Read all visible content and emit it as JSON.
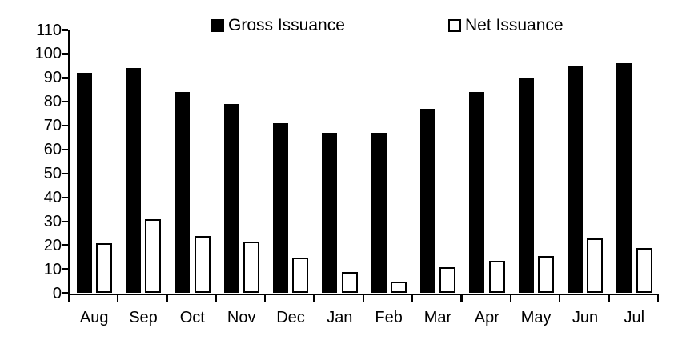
{
  "chart_data": {
    "type": "bar",
    "title": "",
    "xlabel": "",
    "ylabel": "",
    "categories": [
      "Aug",
      "Sep",
      "Oct",
      "Nov",
      "Dec",
      "Jan",
      "Feb",
      "Mar",
      "Apr",
      "May",
      "Jun",
      "Jul"
    ],
    "series": [
      {
        "name": "Gross Issuance",
        "style": "filled",
        "fill": "#000000",
        "values": [
          92,
          94,
          84,
          79,
          71,
          67,
          67,
          77,
          84,
          90,
          95,
          96
        ]
      },
      {
        "name": "Net Issuance",
        "style": "outlined",
        "fill": "#ffffff",
        "border": "#000000",
        "values": [
          21,
          31,
          24,
          21.5,
          15,
          9,
          5,
          11,
          13.5,
          15.5,
          23,
          19
        ]
      }
    ],
    "ylim": [
      0,
      110
    ],
    "ytick_step": 10,
    "yticks": [
      0,
      10,
      20,
      30,
      40,
      50,
      60,
      70,
      80,
      90,
      100,
      110
    ],
    "grid": false,
    "legend_position": "top",
    "axis_color": "#000000",
    "background_color": "#ffffff"
  }
}
